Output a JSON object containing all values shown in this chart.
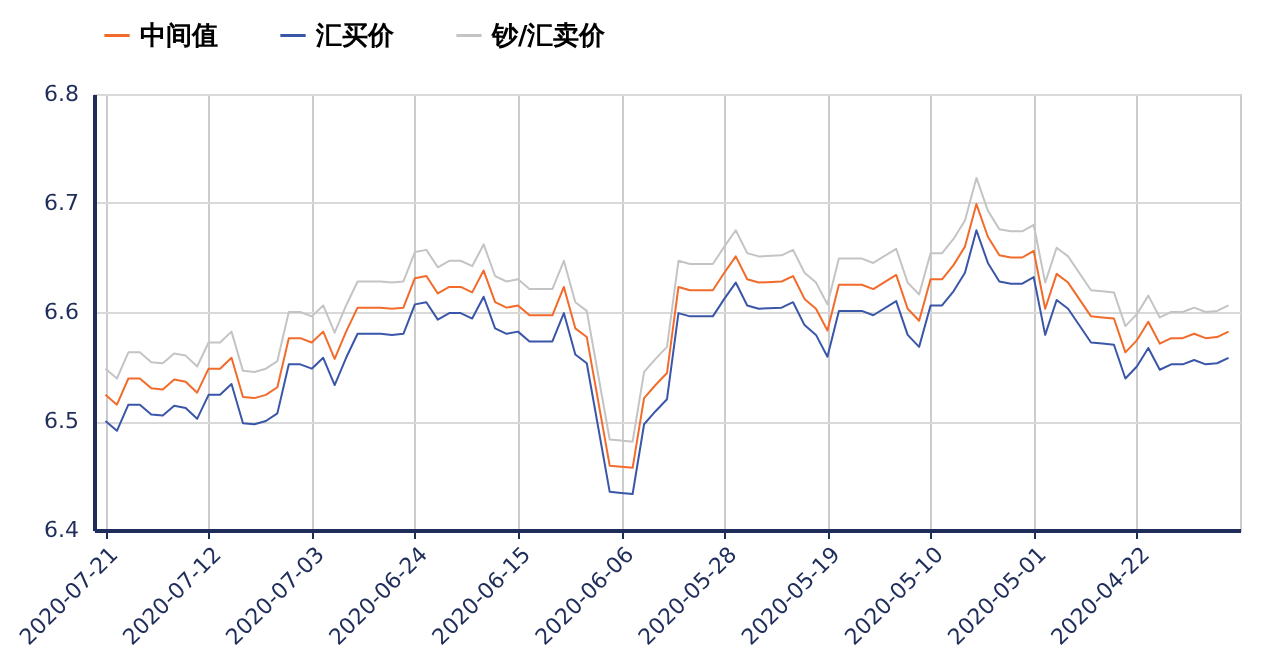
{
  "chart_data": {
    "type": "line",
    "x": [
      "2020-07-21",
      "2020-07-20",
      "2020-07-19",
      "2020-07-18",
      "2020-07-17",
      "2020-07-16",
      "2020-07-15",
      "2020-07-14",
      "2020-07-13",
      "2020-07-12",
      "2020-07-11",
      "2020-07-10",
      "2020-07-09",
      "2020-07-08",
      "2020-07-07",
      "2020-07-06",
      "2020-07-05",
      "2020-07-04",
      "2020-07-03",
      "2020-07-02",
      "2020-07-01",
      "2020-06-30",
      "2020-06-29",
      "2020-06-27",
      "2020-06-26",
      "2020-06-25",
      "2020-06-24",
      "2020-06-23",
      "2020-06-22",
      "2020-06-21",
      "2020-06-20",
      "2020-06-19",
      "2020-06-18",
      "2020-06-17",
      "2020-06-16",
      "2020-06-15",
      "2020-06-14",
      "2020-06-12",
      "2020-06-11",
      "2020-06-10",
      "2020-06-09",
      "2020-06-08",
      "2020-06-07",
      "2020-06-06",
      "2020-06-05",
      "2020-06-04",
      "2020-06-03",
      "2020-06-02",
      "2020-06-01",
      "2020-05-31",
      "2020-05-29",
      "2020-05-28",
      "2020-05-27",
      "2020-05-26",
      "2020-05-25",
      "2020-05-23",
      "2020-05-22",
      "2020-05-21",
      "2020-05-20",
      "2020-05-19",
      "2020-05-18",
      "2020-05-16",
      "2020-05-15",
      "2020-05-13",
      "2020-05-12",
      "2020-05-11",
      "2020-05-10",
      "2020-05-09",
      "2020-05-08",
      "2020-05-07",
      "2020-05-06",
      "2020-05-05",
      "2020-05-04",
      "2020-05-03",
      "2020-05-02",
      "2020-05-01",
      "2020-04-30",
      "2020-04-29",
      "2020-04-28",
      "2020-04-26",
      "2020-04-25",
      "2020-04-24",
      "2020-04-23",
      "2020-04-22",
      "2020-04-21",
      "2020-04-20",
      "2020-04-19",
      "2020-04-18",
      "2020-04-17",
      "2020-04-16",
      "2020-04-15",
      "2020-04-14"
    ],
    "series": [
      {
        "name": "中间值",
        "color": "#f26b2a",
        "values": [
          6.524,
          6.515,
          6.539,
          6.539,
          6.53,
          6.529,
          6.538,
          6.536,
          6.526,
          6.548,
          6.548,
          6.558,
          6.522,
          6.521,
          6.524,
          6.531,
          6.576,
          6.576,
          6.572,
          6.582,
          6.557,
          6.582,
          6.604,
          6.604,
          6.603,
          6.604,
          6.631,
          6.633,
          6.617,
          6.623,
          6.623,
          6.618,
          6.638,
          6.609,
          6.604,
          6.606,
          6.597,
          6.597,
          6.623,
          6.585,
          6.577,
          6.518,
          6.459,
          6.458,
          6.457,
          6.521,
          6.533,
          6.544,
          6.623,
          6.62,
          6.62,
          6.636,
          6.651,
          6.63,
          6.627,
          6.628,
          6.633,
          6.612,
          6.603,
          6.583,
          6.625,
          6.625,
          6.621,
          6.634,
          6.603,
          6.592,
          6.63,
          6.63,
          6.643,
          6.66,
          6.699,
          6.669,
          6.652,
          6.65,
          6.65,
          6.656,
          6.603,
          6.635,
          6.627,
          6.596,
          6.595,
          6.594,
          6.563,
          6.574,
          6.591,
          6.571,
          6.576,
          6.576,
          6.58,
          6.576,
          6.577,
          6.582
        ]
      },
      {
        "name": "汇买价",
        "color": "#3a56a8",
        "values": [
          6.5,
          6.491,
          6.515,
          6.515,
          6.506,
          6.505,
          6.514,
          6.512,
          6.502,
          6.524,
          6.524,
          6.534,
          6.498,
          6.497,
          6.5,
          6.507,
          6.552,
          6.552,
          6.548,
          6.558,
          6.533,
          6.558,
          6.58,
          6.58,
          6.579,
          6.58,
          6.607,
          6.609,
          6.593,
          6.599,
          6.599,
          6.594,
          6.614,
          6.585,
          6.58,
          6.582,
          6.573,
          6.573,
          6.599,
          6.561,
          6.553,
          6.494,
          6.435,
          6.434,
          6.433,
          6.497,
          6.509,
          6.52,
          6.599,
          6.596,
          6.596,
          6.612,
          6.627,
          6.606,
          6.603,
          6.604,
          6.609,
          6.588,
          6.579,
          6.559,
          6.601,
          6.601,
          6.597,
          6.61,
          6.579,
          6.568,
          6.606,
          6.606,
          6.619,
          6.636,
          6.675,
          6.645,
          6.628,
          6.626,
          6.626,
          6.632,
          6.579,
          6.611,
          6.603,
          6.572,
          6.571,
          6.57,
          6.539,
          6.55,
          6.567,
          6.547,
          6.552,
          6.552,
          6.556,
          6.552,
          6.553,
          6.558
        ]
      },
      {
        "name": "钞/汇卖价",
        "color": "#c4c4c4",
        "values": [
          6.548,
          6.539,
          6.563,
          6.563,
          6.554,
          6.553,
          6.562,
          6.56,
          6.55,
          6.572,
          6.572,
          6.582,
          6.546,
          6.545,
          6.548,
          6.555,
          6.6,
          6.6,
          6.596,
          6.606,
          6.581,
          6.606,
          6.628,
          6.628,
          6.627,
          6.628,
          6.655,
          6.657,
          6.641,
          6.647,
          6.647,
          6.642,
          6.662,
          6.633,
          6.628,
          6.63,
          6.621,
          6.621,
          6.647,
          6.609,
          6.601,
          6.542,
          6.483,
          6.482,
          6.481,
          6.545,
          6.557,
          6.568,
          6.647,
          6.644,
          6.644,
          6.66,
          6.675,
          6.654,
          6.651,
          6.652,
          6.657,
          6.636,
          6.627,
          6.607,
          6.649,
          6.649,
          6.645,
          6.658,
          6.627,
          6.616,
          6.654,
          6.654,
          6.667,
          6.684,
          6.723,
          6.693,
          6.676,
          6.674,
          6.674,
          6.68,
          6.627,
          6.659,
          6.651,
          6.62,
          6.619,
          6.618,
          6.587,
          6.598,
          6.615,
          6.595,
          6.6,
          6.6,
          6.604,
          6.6,
          6.601,
          6.606
        ]
      }
    ],
    "xlim": [
      "2020-07-22",
      "2020-04-13"
    ],
    "xticks": [
      "2020-07-21",
      "2020-07-12",
      "2020-07-03",
      "2020-06-24",
      "2020-06-15",
      "2020-06-06",
      "2020-05-28",
      "2020-05-19",
      "2020-05-10",
      "2020-05-01",
      "2020-04-22"
    ],
    "ylim": [
      6.4,
      6.8
    ],
    "yticks": [
      6.4,
      6.5,
      6.6,
      6.7,
      6.8
    ],
    "grid": true,
    "legend": "top",
    "marker": "none",
    "line_style": "solid"
  }
}
